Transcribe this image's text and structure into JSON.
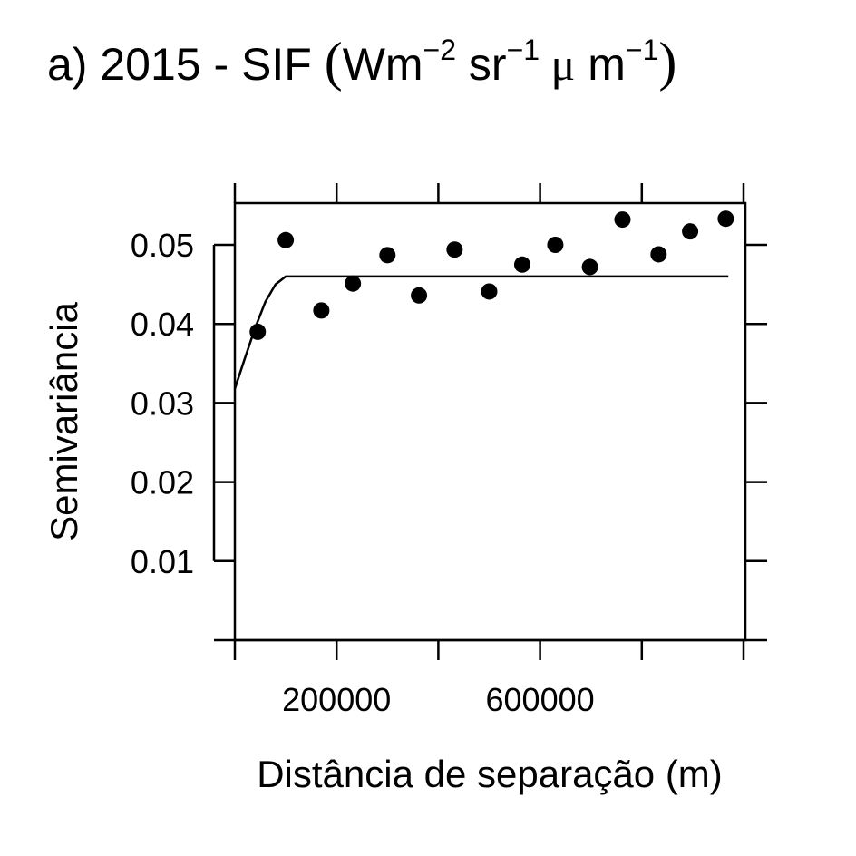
{
  "chart_data": {
    "type": "scatter",
    "title": {
      "prefix": "a) 2015 - SIF ",
      "open_paren": "(",
      "unit_W": "Wm",
      "exp1": "−2",
      "unit_sr": " sr",
      "exp2": "−1",
      "unit_mu": " μ",
      "unit_m": " m",
      "exp3": "−1",
      "close_paren": ")"
    },
    "xlabel": "Distância de separação (m)",
    "ylabel": "Semivariância",
    "xlim": [
      0,
      1000000
    ],
    "ylim": [
      0,
      0.055
    ],
    "x_ticks": [
      0,
      200000,
      400000,
      600000,
      800000,
      1000000
    ],
    "x_tick_labels": [
      {
        "value": 200000,
        "label": "200000"
      },
      {
        "value": 600000,
        "label": "600000"
      }
    ],
    "y_ticks": [
      {
        "value": 0.01,
        "label": "0.01"
      },
      {
        "value": 0.02,
        "label": "0.02"
      },
      {
        "value": 0.03,
        "label": "0.03"
      },
      {
        "value": 0.04,
        "label": "0.04"
      },
      {
        "value": 0.05,
        "label": "0.05"
      }
    ],
    "points": [
      {
        "x": 45000,
        "y": 0.039
      },
      {
        "x": 100000,
        "y": 0.0506
      },
      {
        "x": 170000,
        "y": 0.0417
      },
      {
        "x": 232000,
        "y": 0.0451
      },
      {
        "x": 300000,
        "y": 0.0487
      },
      {
        "x": 362000,
        "y": 0.0436
      },
      {
        "x": 432000,
        "y": 0.0494
      },
      {
        "x": 500000,
        "y": 0.0441
      },
      {
        "x": 565000,
        "y": 0.0475
      },
      {
        "x": 630000,
        "y": 0.05
      },
      {
        "x": 698000,
        "y": 0.0472
      },
      {
        "x": 762000,
        "y": 0.0532
      },
      {
        "x": 833000,
        "y": 0.0488
      },
      {
        "x": 895000,
        "y": 0.0517
      },
      {
        "x": 965000,
        "y": 0.0533
      }
    ],
    "model_line": [
      {
        "x": 0,
        "y": 0.0318
      },
      {
        "x": 20000,
        "y": 0.0357
      },
      {
        "x": 40000,
        "y": 0.0395
      },
      {
        "x": 60000,
        "y": 0.0428
      },
      {
        "x": 80000,
        "y": 0.045
      },
      {
        "x": 100000,
        "y": 0.046
      },
      {
        "x": 970000,
        "y": 0.046
      }
    ],
    "colors": {
      "points": "#000000",
      "line": "#000000",
      "axes": "#000000",
      "background": "#ffffff"
    },
    "grid": false,
    "legend": "none"
  }
}
